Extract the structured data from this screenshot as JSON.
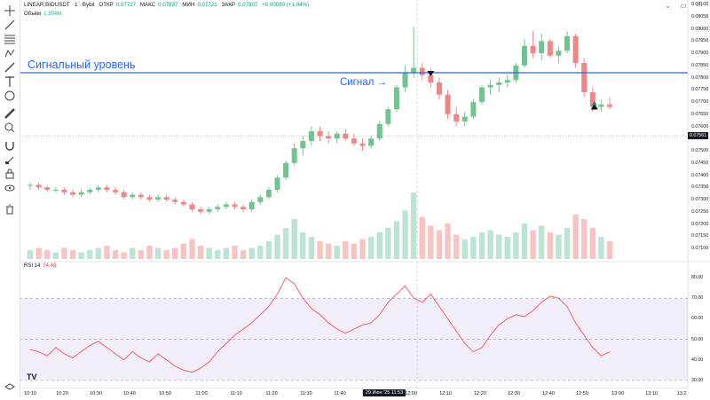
{
  "header": {
    "symbol": "LINEAR:BIOUSDT · 1 · Bybit",
    "open_label": "ОТКР",
    "open_value": "0.07727",
    "high_label": "МАКС",
    "high_value": "0.07837",
    "low_label": "МИН",
    "low_value": "0.07721",
    "close_label": "ЗАКР",
    "close_value": "0.07807",
    "change": "+0.00080 (+1.04%)"
  },
  "volume_legend": {
    "label": "Объём",
    "value": "1.354M"
  },
  "rsi_legend": {
    "label": "RSI 14",
    "value": "74.48"
  },
  "annotations": {
    "signal_level": "Сигнальный уровень",
    "signal": "Сигнал"
  },
  "price_axis": {
    "labels": [
      "0.08100",
      "0.08050",
      "0.08000",
      "0.07950",
      "0.07900",
      "0.07850",
      "0.07800",
      "0.07750",
      "0.07700",
      "0.07650",
      "0.07600",
      "0.07550",
      "0.07500",
      "0.07450",
      "0.07400",
      "0.07350",
      "0.07300",
      "0.07250",
      "0.07200",
      "0.07150",
      "0.07100"
    ],
    "current": "0.07561"
  },
  "rsi_axis": {
    "labels": [
      "80.00",
      "70.00",
      "60.00",
      "50.00",
      "40.00",
      "30.00"
    ]
  },
  "time_axis": {
    "labels": [
      "10:10",
      "10:20",
      "10:30",
      "10:40",
      "10:50",
      "11:00",
      "11:10",
      "11:20",
      "11:30",
      "11:40",
      "12:10",
      "12:20",
      "12:30",
      "12:40",
      "12:50",
      "13:00",
      "13:10",
      "13:2"
    ],
    "cursor": "29 Июн '25   11:53",
    "after_cursor": "12:00"
  },
  "logo": "TV",
  "colors": {
    "up": "#089981",
    "down": "#f23645",
    "signal_line": "#2962ff",
    "rsi_line": "#f7525f",
    "rsi_band": "#7e57c2"
  },
  "chart_data": {
    "type": "candlestick",
    "price_range": [
      0.0708,
      0.081
    ],
    "signal_level": 0.0782,
    "rsi_range": [
      25,
      85
    ],
    "rsi_bands": [
      70,
      50,
      30
    ],
    "candles": [
      [
        0.0736,
        0.0737,
        0.0734,
        0.0736
      ],
      [
        0.0736,
        0.0737,
        0.0734,
        0.0735
      ],
      [
        0.0735,
        0.0736,
        0.0733,
        0.0734
      ],
      [
        0.0734,
        0.0735,
        0.0733,
        0.0734
      ],
      [
        0.0734,
        0.0735,
        0.0732,
        0.0733
      ],
      [
        0.0733,
        0.0734,
        0.0731,
        0.0732
      ],
      [
        0.0732,
        0.0734,
        0.0731,
        0.0733
      ],
      [
        0.0733,
        0.0735,
        0.0732,
        0.0734
      ],
      [
        0.0734,
        0.0736,
        0.0733,
        0.0735
      ],
      [
        0.0735,
        0.0736,
        0.0733,
        0.0734
      ],
      [
        0.0734,
        0.0735,
        0.0732,
        0.0733
      ],
      [
        0.0733,
        0.0734,
        0.073,
        0.0731
      ],
      [
        0.0731,
        0.0733,
        0.073,
        0.0732
      ],
      [
        0.0732,
        0.0733,
        0.073,
        0.0731
      ],
      [
        0.0731,
        0.0732,
        0.0729,
        0.073
      ],
      [
        0.073,
        0.0732,
        0.0729,
        0.0731
      ],
      [
        0.0731,
        0.0732,
        0.0729,
        0.073
      ],
      [
        0.073,
        0.0731,
        0.0728,
        0.0729
      ],
      [
        0.0729,
        0.073,
        0.0727,
        0.0728
      ],
      [
        0.0728,
        0.0729,
        0.0725,
        0.0726
      ],
      [
        0.0726,
        0.0727,
        0.0724,
        0.0725
      ],
      [
        0.0725,
        0.0727,
        0.0724,
        0.0726
      ],
      [
        0.0726,
        0.0728,
        0.0725,
        0.0727
      ],
      [
        0.0727,
        0.0729,
        0.0726,
        0.0728
      ],
      [
        0.0728,
        0.0729,
        0.0726,
        0.0727
      ],
      [
        0.0727,
        0.0728,
        0.0725,
        0.0726
      ],
      [
        0.0726,
        0.073,
        0.0725,
        0.0729
      ],
      [
        0.0729,
        0.0732,
        0.0728,
        0.0731
      ],
      [
        0.0731,
        0.0735,
        0.073,
        0.0734
      ],
      [
        0.0734,
        0.074,
        0.0733,
        0.0739
      ],
      [
        0.0739,
        0.0746,
        0.0738,
        0.0745
      ],
      [
        0.0745,
        0.0753,
        0.0744,
        0.0751
      ],
      [
        0.0751,
        0.0756,
        0.0748,
        0.0754
      ],
      [
        0.0754,
        0.076,
        0.0752,
        0.0758
      ],
      [
        0.0758,
        0.076,
        0.0754,
        0.0756
      ],
      [
        0.0756,
        0.0758,
        0.0753,
        0.0755
      ],
      [
        0.0755,
        0.0758,
        0.0753,
        0.0757
      ],
      [
        0.0757,
        0.0759,
        0.0754,
        0.0755
      ],
      [
        0.0755,
        0.0757,
        0.0752,
        0.0753
      ],
      [
        0.0753,
        0.0755,
        0.075,
        0.0752
      ],
      [
        0.0752,
        0.0756,
        0.0751,
        0.0755
      ],
      [
        0.0755,
        0.0762,
        0.0754,
        0.0761
      ],
      [
        0.0761,
        0.0768,
        0.076,
        0.0767
      ],
      [
        0.0767,
        0.0777,
        0.0766,
        0.0776
      ],
      [
        0.0776,
        0.0785,
        0.0774,
        0.0782
      ],
      [
        0.0782,
        0.0801,
        0.078,
        0.0784
      ],
      [
        0.0784,
        0.0786,
        0.0779,
        0.0781
      ],
      [
        0.0781,
        0.0784,
        0.0776,
        0.0778
      ],
      [
        0.0778,
        0.078,
        0.0771,
        0.0773
      ],
      [
        0.0773,
        0.0775,
        0.0763,
        0.0765
      ],
      [
        0.0765,
        0.0768,
        0.076,
        0.0762
      ],
      [
        0.0762,
        0.0766,
        0.076,
        0.0764
      ],
      [
        0.0764,
        0.0771,
        0.0763,
        0.077
      ],
      [
        0.077,
        0.0777,
        0.0769,
        0.0776
      ],
      [
        0.0776,
        0.0779,
        0.0773,
        0.0777
      ],
      [
        0.0777,
        0.078,
        0.0774,
        0.0778
      ],
      [
        0.0778,
        0.0781,
        0.0776,
        0.0779
      ],
      [
        0.0779,
        0.0786,
        0.0778,
        0.0785
      ],
      [
        0.0785,
        0.0796,
        0.0784,
        0.0793
      ],
      [
        0.0793,
        0.0799,
        0.0788,
        0.079
      ],
      [
        0.079,
        0.0798,
        0.0787,
        0.0795
      ],
      [
        0.0795,
        0.0796,
        0.0788,
        0.0789
      ],
      [
        0.0789,
        0.0793,
        0.0786,
        0.0791
      ],
      [
        0.0791,
        0.0799,
        0.079,
        0.0797
      ],
      [
        0.0797,
        0.0798,
        0.0784,
        0.0786
      ],
      [
        0.0786,
        0.0788,
        0.0772,
        0.0774
      ],
      [
        0.0774,
        0.0776,
        0.0766,
        0.0768
      ],
      [
        0.0768,
        0.0771,
        0.0766,
        0.0769
      ],
      [
        0.0769,
        0.0772,
        0.0767,
        0.0768
      ]
    ],
    "volumes": [
      4,
      5,
      4,
      3,
      5,
      4,
      3,
      4,
      5,
      6,
      4,
      3,
      5,
      4,
      6,
      5,
      4,
      5,
      7,
      9,
      6,
      5,
      4,
      5,
      6,
      4,
      5,
      6,
      8,
      11,
      14,
      18,
      12,
      10,
      8,
      7,
      6,
      8,
      7,
      9,
      10,
      12,
      14,
      17,
      22,
      30,
      19,
      15,
      13,
      16,
      11,
      9,
      10,
      12,
      13,
      11,
      10,
      12,
      16,
      13,
      15,
      12,
      11,
      14,
      20,
      18,
      14,
      10,
      8
    ],
    "rsi": [
      45,
      44,
      42,
      46,
      43,
      41,
      44,
      47,
      49,
      46,
      43,
      40,
      44,
      41,
      39,
      43,
      40,
      37,
      35,
      34,
      36,
      39,
      44,
      48,
      52,
      55,
      58,
      62,
      66,
      72,
      80,
      77,
      70,
      65,
      62,
      58,
      55,
      53,
      55,
      57,
      58,
      62,
      68,
      72,
      76,
      70,
      68,
      72,
      66,
      60,
      54,
      48,
      44,
      46,
      52,
      57,
      60,
      62,
      61,
      64,
      68,
      71,
      70,
      66,
      58,
      52,
      46,
      42,
      44
    ]
  }
}
